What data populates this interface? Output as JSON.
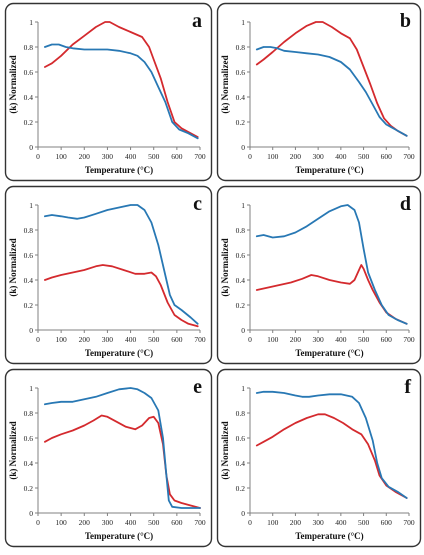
{
  "figure": {
    "panels": [
      "a",
      "b",
      "c",
      "d",
      "e",
      "f"
    ]
  },
  "colors": {
    "red": "#d42a2e",
    "blue": "#2878b4",
    "frame": "#333333",
    "axis": "#808080"
  },
  "chart_data": [
    {
      "label": "a",
      "type": "line",
      "xlabel": "Temperature (°C)",
      "ylabel": "(k) Normalized",
      "xlim": [
        0,
        700
      ],
      "ylim": [
        0,
        1
      ],
      "xticks": [
        0,
        100,
        200,
        300,
        400,
        500,
        600,
        700
      ],
      "yticks": [
        0,
        0.2,
        0.4,
        0.6,
        0.8,
        1
      ],
      "series": [
        {
          "color": "red",
          "points": [
            [
              30,
              0.64
            ],
            [
              60,
              0.67
            ],
            [
              100,
              0.73
            ],
            [
              150,
              0.82
            ],
            [
              200,
              0.89
            ],
            [
              250,
              0.96
            ],
            [
              290,
              1.0
            ],
            [
              310,
              1.0
            ],
            [
              350,
              0.96
            ],
            [
              400,
              0.92
            ],
            [
              450,
              0.88
            ],
            [
              480,
              0.8
            ],
            [
              500,
              0.7
            ],
            [
              530,
              0.55
            ],
            [
              560,
              0.36
            ],
            [
              590,
              0.2
            ],
            [
              620,
              0.15
            ],
            [
              650,
              0.12
            ],
            [
              690,
              0.08
            ]
          ]
        },
        {
          "color": "blue",
          "points": [
            [
              30,
              0.8
            ],
            [
              60,
              0.82
            ],
            [
              90,
              0.82
            ],
            [
              120,
              0.8
            ],
            [
              150,
              0.79
            ],
            [
              200,
              0.78
            ],
            [
              250,
              0.78
            ],
            [
              300,
              0.78
            ],
            [
              350,
              0.77
            ],
            [
              400,
              0.75
            ],
            [
              430,
              0.73
            ],
            [
              460,
              0.68
            ],
            [
              490,
              0.6
            ],
            [
              520,
              0.48
            ],
            [
              550,
              0.36
            ],
            [
              580,
              0.2
            ],
            [
              610,
              0.14
            ],
            [
              650,
              0.11
            ],
            [
              690,
              0.07
            ]
          ]
        }
      ]
    },
    {
      "label": "b",
      "type": "line",
      "xlabel": "Temperature (°C)",
      "ylabel": "(k) Normalized",
      "xlim": [
        0,
        700
      ],
      "ylim": [
        0,
        1
      ],
      "xticks": [
        0,
        100,
        200,
        300,
        400,
        500,
        600,
        700
      ],
      "yticks": [
        0,
        0.2,
        0.4,
        0.6,
        0.8,
        1
      ],
      "series": [
        {
          "color": "red",
          "points": [
            [
              30,
              0.66
            ],
            [
              60,
              0.7
            ],
            [
              100,
              0.76
            ],
            [
              150,
              0.84
            ],
            [
              200,
              0.91
            ],
            [
              250,
              0.97
            ],
            [
              290,
              1.0
            ],
            [
              320,
              1.0
            ],
            [
              360,
              0.96
            ],
            [
              400,
              0.91
            ],
            [
              440,
              0.87
            ],
            [
              470,
              0.78
            ],
            [
              500,
              0.64
            ],
            [
              530,
              0.5
            ],
            [
              560,
              0.35
            ],
            [
              590,
              0.23
            ],
            [
              620,
              0.17
            ],
            [
              650,
              0.13
            ],
            [
              690,
              0.09
            ]
          ]
        },
        {
          "color": "blue",
          "points": [
            [
              30,
              0.78
            ],
            [
              60,
              0.8
            ],
            [
              90,
              0.8
            ],
            [
              120,
              0.79
            ],
            [
              150,
              0.77
            ],
            [
              200,
              0.76
            ],
            [
              250,
              0.75
            ],
            [
              300,
              0.74
            ],
            [
              350,
              0.72
            ],
            [
              400,
              0.68
            ],
            [
              440,
              0.62
            ],
            [
              480,
              0.52
            ],
            [
              510,
              0.44
            ],
            [
              540,
              0.34
            ],
            [
              570,
              0.24
            ],
            [
              600,
              0.18
            ],
            [
              640,
              0.14
            ],
            [
              690,
              0.09
            ]
          ]
        }
      ]
    },
    {
      "label": "c",
      "type": "line",
      "xlabel": "Temperature (°C)",
      "ylabel": "(k) Normalized",
      "xlim": [
        0,
        700
      ],
      "ylim": [
        0,
        1
      ],
      "xticks": [
        0,
        100,
        200,
        300,
        400,
        500,
        600,
        700
      ],
      "yticks": [
        0,
        0.2,
        0.4,
        0.6,
        0.8,
        1
      ],
      "series": [
        {
          "color": "red",
          "points": [
            [
              30,
              0.4
            ],
            [
              60,
              0.42
            ],
            [
              100,
              0.44
            ],
            [
              150,
              0.46
            ],
            [
              200,
              0.48
            ],
            [
              250,
              0.51
            ],
            [
              280,
              0.52
            ],
            [
              320,
              0.51
            ],
            [
              370,
              0.48
            ],
            [
              420,
              0.45
            ],
            [
              460,
              0.45
            ],
            [
              490,
              0.46
            ],
            [
              510,
              0.43
            ],
            [
              530,
              0.36
            ],
            [
              560,
              0.22
            ],
            [
              590,
              0.12
            ],
            [
              620,
              0.08
            ],
            [
              650,
              0.05
            ],
            [
              690,
              0.03
            ]
          ]
        },
        {
          "color": "blue",
          "points": [
            [
              30,
              0.91
            ],
            [
              60,
              0.92
            ],
            [
              100,
              0.91
            ],
            [
              130,
              0.9
            ],
            [
              170,
              0.89
            ],
            [
              200,
              0.9
            ],
            [
              250,
              0.93
            ],
            [
              300,
              0.96
            ],
            [
              350,
              0.98
            ],
            [
              400,
              1.0
            ],
            [
              430,
              1.0
            ],
            [
              460,
              0.96
            ],
            [
              490,
              0.86
            ],
            [
              520,
              0.68
            ],
            [
              545,
              0.48
            ],
            [
              570,
              0.28
            ],
            [
              590,
              0.2
            ],
            [
              620,
              0.16
            ],
            [
              660,
              0.1
            ],
            [
              690,
              0.05
            ]
          ]
        }
      ]
    },
    {
      "label": "d",
      "type": "line",
      "xlabel": "Temperature (°C)",
      "ylabel": "(k) Normalized",
      "xlim": [
        0,
        700
      ],
      "ylim": [
        0,
        1
      ],
      "xticks": [
        0,
        100,
        200,
        300,
        400,
        500,
        600,
        700
      ],
      "yticks": [
        0,
        0.2,
        0.4,
        0.6,
        0.8,
        1
      ],
      "series": [
        {
          "color": "red",
          "points": [
            [
              30,
              0.32
            ],
            [
              80,
              0.34
            ],
            [
              130,
              0.36
            ],
            [
              180,
              0.38
            ],
            [
              230,
              0.41
            ],
            [
              270,
              0.44
            ],
            [
              300,
              0.43
            ],
            [
              350,
              0.4
            ],
            [
              400,
              0.38
            ],
            [
              440,
              0.37
            ],
            [
              460,
              0.4
            ],
            [
              480,
              0.48
            ],
            [
              490,
              0.52
            ],
            [
              500,
              0.49
            ],
            [
              520,
              0.4
            ],
            [
              540,
              0.32
            ],
            [
              570,
              0.22
            ],
            [
              600,
              0.14
            ],
            [
              640,
              0.09
            ],
            [
              690,
              0.05
            ]
          ]
        },
        {
          "color": "blue",
          "points": [
            [
              30,
              0.75
            ],
            [
              60,
              0.76
            ],
            [
              100,
              0.74
            ],
            [
              150,
              0.75
            ],
            [
              200,
              0.78
            ],
            [
              250,
              0.83
            ],
            [
              300,
              0.89
            ],
            [
              350,
              0.95
            ],
            [
              400,
              0.99
            ],
            [
              430,
              1.0
            ],
            [
              460,
              0.96
            ],
            [
              480,
              0.86
            ],
            [
              500,
              0.65
            ],
            [
              520,
              0.46
            ],
            [
              550,
              0.32
            ],
            [
              580,
              0.2
            ],
            [
              610,
              0.12
            ],
            [
              650,
              0.08
            ],
            [
              690,
              0.05
            ]
          ]
        }
      ]
    },
    {
      "label": "e",
      "type": "line",
      "xlabel": "Temperature (°C)",
      "ylabel": "(k) Normalized",
      "xlim": [
        0,
        700
      ],
      "ylim": [
        0,
        1
      ],
      "xticks": [
        0,
        100,
        200,
        300,
        400,
        500,
        600,
        700
      ],
      "yticks": [
        0,
        0.2,
        0.4,
        0.6,
        0.8,
        1
      ],
      "series": [
        {
          "color": "red",
          "points": [
            [
              30,
              0.57
            ],
            [
              60,
              0.6
            ],
            [
              100,
              0.63
            ],
            [
              150,
              0.66
            ],
            [
              200,
              0.7
            ],
            [
              240,
              0.74
            ],
            [
              275,
              0.78
            ],
            [
              300,
              0.77
            ],
            [
              340,
              0.73
            ],
            [
              380,
              0.69
            ],
            [
              420,
              0.67
            ],
            [
              450,
              0.7
            ],
            [
              480,
              0.76
            ],
            [
              500,
              0.77
            ],
            [
              520,
              0.72
            ],
            [
              540,
              0.55
            ],
            [
              555,
              0.3
            ],
            [
              570,
              0.15
            ],
            [
              590,
              0.1
            ],
            [
              620,
              0.08
            ],
            [
              660,
              0.06
            ],
            [
              700,
              0.04
            ]
          ]
        },
        {
          "color": "blue",
          "points": [
            [
              30,
              0.87
            ],
            [
              60,
              0.88
            ],
            [
              100,
              0.89
            ],
            [
              150,
              0.89
            ],
            [
              200,
              0.91
            ],
            [
              250,
              0.93
            ],
            [
              300,
              0.96
            ],
            [
              350,
              0.99
            ],
            [
              400,
              1.0
            ],
            [
              430,
              0.99
            ],
            [
              460,
              0.96
            ],
            [
              490,
              0.92
            ],
            [
              520,
              0.82
            ],
            [
              540,
              0.6
            ],
            [
              555,
              0.3
            ],
            [
              565,
              0.1
            ],
            [
              580,
              0.05
            ],
            [
              620,
              0.04
            ],
            [
              660,
              0.04
            ],
            [
              700,
              0.04
            ]
          ]
        }
      ]
    },
    {
      "label": "f",
      "type": "line",
      "xlabel": "Temperature (°C)",
      "ylabel": "(k) Normalized",
      "xlim": [
        0,
        700
      ],
      "ylim": [
        0,
        1
      ],
      "xticks": [
        0,
        100,
        200,
        300,
        400,
        500,
        600,
        700
      ],
      "yticks": [
        0,
        0.2,
        0.4,
        0.6,
        0.8,
        1
      ],
      "series": [
        {
          "color": "red",
          "points": [
            [
              30,
              0.54
            ],
            [
              60,
              0.57
            ],
            [
              100,
              0.61
            ],
            [
              150,
              0.67
            ],
            [
              200,
              0.72
            ],
            [
              250,
              0.76
            ],
            [
              300,
              0.79
            ],
            [
              330,
              0.79
            ],
            [
              370,
              0.76
            ],
            [
              410,
              0.72
            ],
            [
              450,
              0.67
            ],
            [
              490,
              0.63
            ],
            [
              520,
              0.55
            ],
            [
              550,
              0.42
            ],
            [
              570,
              0.3
            ],
            [
              600,
              0.22
            ],
            [
              640,
              0.17
            ],
            [
              690,
              0.12
            ]
          ]
        },
        {
          "color": "blue",
          "points": [
            [
              30,
              0.96
            ],
            [
              60,
              0.97
            ],
            [
              100,
              0.97
            ],
            [
              150,
              0.96
            ],
            [
              200,
              0.94
            ],
            [
              230,
              0.93
            ],
            [
              260,
              0.93
            ],
            [
              300,
              0.94
            ],
            [
              350,
              0.95
            ],
            [
              400,
              0.95
            ],
            [
              450,
              0.93
            ],
            [
              480,
              0.88
            ],
            [
              510,
              0.76
            ],
            [
              540,
              0.58
            ],
            [
              560,
              0.4
            ],
            [
              580,
              0.28
            ],
            [
              610,
              0.21
            ],
            [
              650,
              0.17
            ],
            [
              690,
              0.12
            ]
          ]
        }
      ]
    }
  ]
}
